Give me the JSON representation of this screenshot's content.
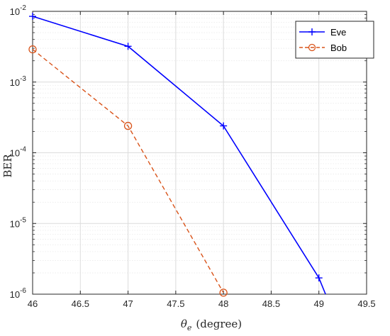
{
  "chart_data": {
    "type": "line",
    "title": "",
    "xlabel_symbol": "θ",
    "xlabel_subscript": "e",
    "xlabel_unit": "(degree)",
    "ylabel": "BER",
    "yscale": "log",
    "xlim": [
      46,
      49.5
    ],
    "ylim": [
      1e-06,
      0.01
    ],
    "xticks": [
      "46",
      "46.5",
      "47",
      "47.5",
      "48",
      "48.5",
      "49",
      "49.5"
    ],
    "yticks": [
      {
        "base": "10",
        "exp": "-6"
      },
      {
        "base": "10",
        "exp": "-5"
      },
      {
        "base": "10",
        "exp": "-4"
      },
      {
        "base": "10",
        "exp": "-3"
      },
      {
        "base": "10",
        "exp": "-2"
      }
    ],
    "grid": true,
    "legend_position": "top-right",
    "series": [
      {
        "name": "Eve",
        "color": "#0000ff",
        "style": "solid",
        "marker": "plus",
        "x": [
          46,
          47,
          48,
          49,
          49.07
        ],
        "y": [
          0.0085,
          0.0032,
          0.00024,
          1.7e-06,
          1e-06
        ]
      },
      {
        "name": "Bob",
        "color": "#d95319",
        "style": "dashed",
        "marker": "circle",
        "x": [
          46,
          47,
          48
        ],
        "y": [
          0.0029,
          0.00024,
          1.05e-06
        ]
      }
    ]
  }
}
